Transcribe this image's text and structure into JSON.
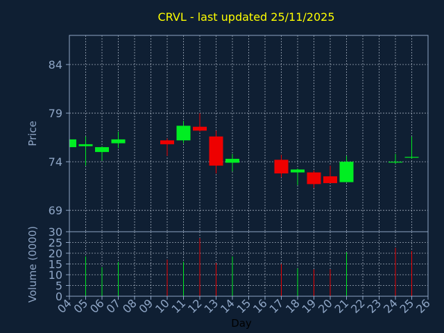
{
  "title": "CRVL - last updated 25/11/2025",
  "colors": {
    "background": "#0f1f33",
    "title": "#ffff00",
    "axis_text": "#8fa6c6",
    "frame": "#8fa6c6",
    "grid": "#c8d2e0",
    "up": "#00ee22",
    "down": "#ee0000",
    "xlabel": "#000000"
  },
  "chart_data": [
    {
      "type": "candlestick",
      "title": "CRVL - last updated 25/11/2025",
      "ylabel": "Price",
      "ylim": [
        66.8,
        87.0
      ],
      "yticks": [
        69,
        74,
        79,
        84
      ],
      "xticks": [
        "04",
        "05",
        "06",
        "07",
        "08",
        "09",
        "10",
        "11",
        "12",
        "13",
        "14",
        "15",
        "16",
        "17",
        "18",
        "19",
        "20",
        "21",
        "22",
        "23",
        "24",
        "25",
        "26"
      ],
      "grid": true,
      "candles": [
        {
          "day": "04",
          "open": 75.5,
          "close": 76.3,
          "high": 76.3,
          "low": 75.5
        },
        {
          "day": "05",
          "open": 75.6,
          "close": 75.8,
          "high": 76.6,
          "low": 73.6
        },
        {
          "day": "06",
          "open": 75.0,
          "close": 75.5,
          "high": 75.6,
          "low": 74.1
        },
        {
          "day": "07",
          "open": 75.9,
          "close": 76.3,
          "high": 77.1,
          "low": 75.4
        },
        {
          "day": "10",
          "open": 76.2,
          "close": 75.8,
          "high": 76.4,
          "low": 74.6
        },
        {
          "day": "11",
          "open": 76.2,
          "close": 77.7,
          "high": 78.2,
          "low": 75.9
        },
        {
          "day": "12",
          "open": 77.6,
          "close": 77.2,
          "high": 79.0,
          "low": 77.1
        },
        {
          "day": "13",
          "open": 76.6,
          "close": 73.6,
          "high": 77.2,
          "low": 72.8
        },
        {
          "day": "14",
          "open": 73.9,
          "close": 74.3,
          "high": 74.8,
          "low": 73.0
        },
        {
          "day": "17",
          "open": 74.2,
          "close": 72.8,
          "high": 74.7,
          "low": 72.4
        },
        {
          "day": "18",
          "open": 72.9,
          "close": 73.2,
          "high": 73.3,
          "low": 71.6
        },
        {
          "day": "19",
          "open": 72.9,
          "close": 71.7,
          "high": 73.1,
          "low": 71.3
        },
        {
          "day": "20",
          "open": 72.5,
          "close": 71.8,
          "high": 73.6,
          "low": 71.8
        },
        {
          "day": "21",
          "open": 71.9,
          "close": 74.0,
          "high": 74.6,
          "low": 71.9
        },
        {
          "day": "24",
          "open": 74.0,
          "close": 74.0,
          "high": 74.8,
          "low": 73.8
        },
        {
          "day": "25",
          "open": 74.5,
          "close": 74.5,
          "high": 76.6,
          "low": 74.3
        }
      ]
    },
    {
      "type": "bar",
      "xlabel": "Day",
      "ylabel": "Volume (0000)",
      "ylim": [
        0,
        30
      ],
      "yticks": [
        0,
        5,
        10,
        15,
        20,
        25,
        30
      ],
      "xticks": [
        "04",
        "05",
        "06",
        "07",
        "08",
        "09",
        "10",
        "11",
        "12",
        "13",
        "14",
        "15",
        "16",
        "17",
        "18",
        "19",
        "20",
        "21",
        "22",
        "23",
        "24",
        "25",
        "26"
      ],
      "grid": true,
      "bars": [
        {
          "day": "05",
          "value": 18.5,
          "direction": "up"
        },
        {
          "day": "06",
          "value": 13.5,
          "direction": "up"
        },
        {
          "day": "07",
          "value": 16.0,
          "direction": "up"
        },
        {
          "day": "10",
          "value": 17.0,
          "direction": "down"
        },
        {
          "day": "11",
          "value": 16.0,
          "direction": "up"
        },
        {
          "day": "12",
          "value": 27.0,
          "direction": "down"
        },
        {
          "day": "13",
          "value": 15.5,
          "direction": "down"
        },
        {
          "day": "14",
          "value": 18.5,
          "direction": "up"
        },
        {
          "day": "17",
          "value": 15.0,
          "direction": "down"
        },
        {
          "day": "18",
          "value": 13.0,
          "direction": "up"
        },
        {
          "day": "19",
          "value": 12.5,
          "direction": "down"
        },
        {
          "day": "20",
          "value": 12.5,
          "direction": "down"
        },
        {
          "day": "21",
          "value": 20.5,
          "direction": "up"
        },
        {
          "day": "24",
          "value": 22.5,
          "direction": "down"
        },
        {
          "day": "25",
          "value": 21.0,
          "direction": "down"
        }
      ]
    }
  ]
}
